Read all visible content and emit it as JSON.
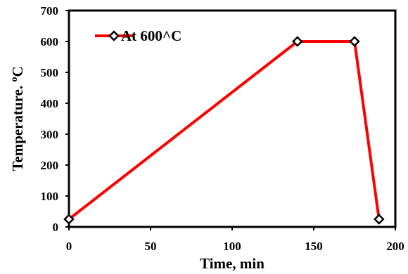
{
  "chart_data": {
    "type": "line",
    "title": "",
    "xlabel": "Time, min",
    "ylabel_main": "Temperature. ",
    "ylabel_sup": "o",
    "ylabel_unit": "C",
    "xlim": [
      0,
      200
    ],
    "ylim": [
      0,
      700
    ],
    "xticks": [
      0,
      50,
      100,
      150,
      200
    ],
    "yticks": [
      0,
      100,
      200,
      300,
      400,
      500,
      600,
      700
    ],
    "grid": false,
    "legend_position": "top-left",
    "series": [
      {
        "name": "At 600^C",
        "color": "#ff0000",
        "marker": "diamond",
        "x": [
          0,
          140,
          175,
          190
        ],
        "y": [
          25,
          600,
          600,
          25
        ]
      }
    ]
  }
}
